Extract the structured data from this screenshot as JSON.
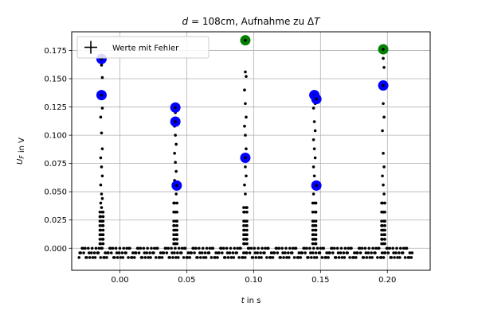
{
  "chart_data": {
    "type": "scatter",
    "title": "d = 108cm, Aufnahme zu ΔT",
    "xlabel": "t in s",
    "ylabel": "U_F in V",
    "xlim": [
      -0.036,
      0.232
    ],
    "ylim": [
      -0.0195,
      0.1915
    ],
    "x_ticks": [
      0.0,
      0.05,
      0.1,
      0.15,
      0.2
    ],
    "x_tick_labels": [
      "0.00",
      "0.05",
      "0.10",
      "0.15",
      "0.20"
    ],
    "y_ticks": [
      0.0,
      0.025,
      0.05,
      0.075,
      0.1,
      0.125,
      0.15,
      0.175
    ],
    "y_tick_labels": [
      "0.000",
      "0.025",
      "0.050",
      "0.075",
      "0.100",
      "0.125",
      "0.150",
      "0.175"
    ],
    "grid": true,
    "legend_position": "top-left",
    "legend": [
      {
        "label": "Werte mit Fehler",
        "marker": "plus"
      }
    ],
    "data_series": {
      "name": "Werte mit Fehler",
      "color": "#000000",
      "x_range": [
        -0.0305,
        0.219
      ],
      "baseline_levels": [
        -0.0082,
        -0.0041,
        0.0
      ],
      "pulses": [
        {
          "t": -0.0137,
          "ys": [
            0.168,
            0.162,
            0.151,
            0.136,
            0.135,
            0.124,
            0.116,
            0.102,
            0.088,
            0.08,
            0.072,
            0.064,
            0.056,
            0.048,
            0.044,
            0.04,
            0.036,
            0.032,
            0.028,
            0.024,
            0.02,
            0.016,
            0.012,
            0.008,
            0.004
          ]
        },
        {
          "t": 0.0415,
          "ys": [
            0.124,
            0.12,
            0.112,
            0.108,
            0.1,
            0.092,
            0.084,
            0.076,
            0.068,
            0.06,
            0.056,
            0.048,
            0.04,
            0.032,
            0.024,
            0.02,
            0.016,
            0.012,
            0.008,
            0.004
          ]
        },
        {
          "t": 0.0938,
          "ys": [
            0.184,
            0.156,
            0.152,
            0.14,
            0.128,
            0.116,
            0.108,
            0.1,
            0.088,
            0.08,
            0.072,
            0.064,
            0.056,
            0.048,
            0.036,
            0.032,
            0.024,
            0.02,
            0.016,
            0.012,
            0.008,
            0.004
          ]
        },
        {
          "t": 0.1454,
          "ys": [
            0.136,
            0.132,
            0.128,
            0.124,
            0.112,
            0.104,
            0.096,
            0.088,
            0.08,
            0.072,
            0.064,
            0.056,
            0.048,
            0.04,
            0.032,
            0.024,
            0.02,
            0.016,
            0.012,
            0.008,
            0.004
          ]
        },
        {
          "t": 0.1969,
          "ys": [
            0.176,
            0.168,
            0.16,
            0.144,
            0.128,
            0.116,
            0.104,
            0.084,
            0.072,
            0.064,
            0.056,
            0.048,
            0.04,
            0.032,
            0.024,
            0.02,
            0.016,
            0.012,
            0.008,
            0.004
          ]
        }
      ]
    },
    "highlighted_points": [
      {
        "x": -0.0137,
        "y": 0.1675,
        "color": "#0000ff"
      },
      {
        "x": -0.0137,
        "y": 0.1355,
        "color": "#0000ff"
      },
      {
        "x": 0.0415,
        "y": 0.1245,
        "color": "#0000ff"
      },
      {
        "x": 0.0415,
        "y": 0.112,
        "color": "#0000ff"
      },
      {
        "x": 0.0425,
        "y": 0.0555,
        "color": "#0000ff"
      },
      {
        "x": 0.0938,
        "y": 0.184,
        "color": "#008000"
      },
      {
        "x": 0.0938,
        "y": 0.08,
        "color": "#0000ff"
      },
      {
        "x": 0.1454,
        "y": 0.1355,
        "color": "#0000ff"
      },
      {
        "x": 0.1469,
        "y": 0.132,
        "color": "#0000ff"
      },
      {
        "x": 0.1469,
        "y": 0.0555,
        "color": "#0000ff"
      },
      {
        "x": 0.1969,
        "y": 0.176,
        "color": "#008000"
      },
      {
        "x": 0.1969,
        "y": 0.144,
        "color": "#0000ff"
      }
    ]
  }
}
